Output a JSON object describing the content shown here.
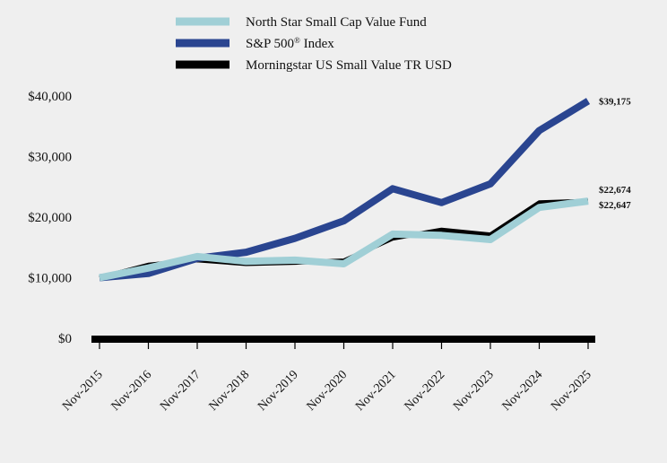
{
  "chart_data": {
    "type": "line",
    "title": "",
    "xlabel": "",
    "ylabel": "",
    "categories": [
      "Nov-2015",
      "Nov-2016",
      "Nov-2017",
      "Nov-2018",
      "Nov-2019",
      "Nov-2020",
      "Nov-2021",
      "Nov-2022",
      "Nov-2023",
      "Nov-2024",
      "Nov-2025"
    ],
    "ylim": [
      0,
      40000
    ],
    "yticks": [
      0,
      10000,
      20000,
      30000,
      40000
    ],
    "ytick_labels": [
      "$0",
      "$10,000",
      "$20,000",
      "$30,000",
      "$40,000"
    ],
    "legend_position": "top-center",
    "grid": false,
    "series": [
      {
        "name": "Morningstar US Small Value TR USD",
        "color": "#000000",
        "values": [
          10000,
          12100,
          12900,
          12300,
          12500,
          12800,
          16500,
          17900,
          17100,
          22400,
          22674
        ],
        "end_label": "$22,674"
      },
      {
        "name": "S&P 500",
        "name_sup": "®",
        "name_suffix": " Index",
        "color": "#2a4590",
        "values": [
          10000,
          10700,
          13200,
          14200,
          16500,
          19400,
          24700,
          22400,
          25500,
          34300,
          39175
        ],
        "end_label": "$39,175"
      },
      {
        "name": "North Star Small Cap Value Fund",
        "color": "#a0cfd6",
        "values": [
          10000,
          11600,
          13500,
          12700,
          12900,
          12300,
          17200,
          17000,
          16300,
          21600,
          22647
        ],
        "end_label": "$22,647"
      }
    ],
    "legend_order": [
      2,
      1,
      0
    ]
  }
}
